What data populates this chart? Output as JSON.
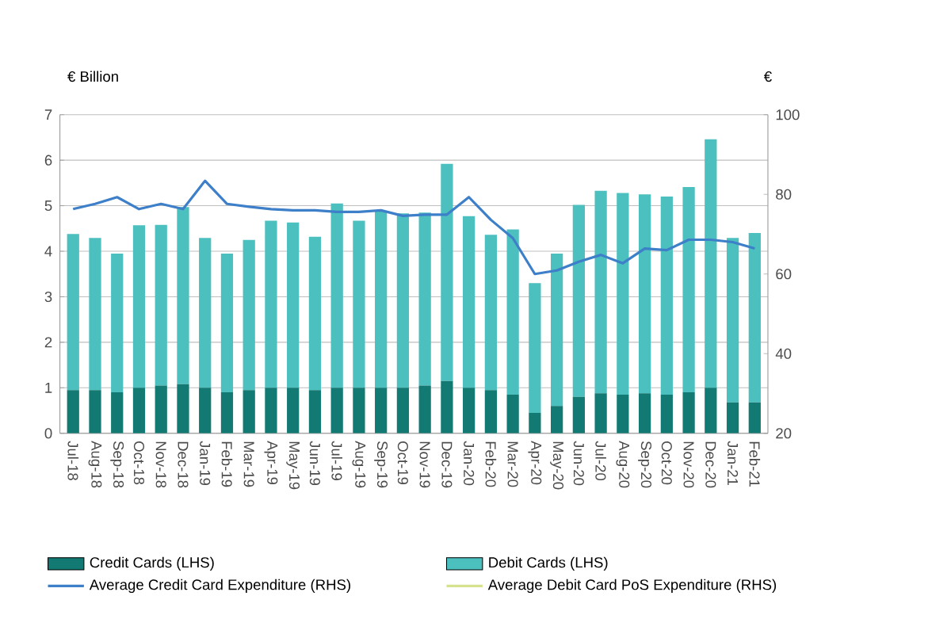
{
  "chart_data": {
    "type": "bar",
    "stacked": true,
    "ylabel": "€ Billion",
    "y2label": "€",
    "categories": [
      "Jul-18",
      "Aug-18",
      "Sep-18",
      "Oct-18",
      "Nov-18",
      "Dec-18",
      "Jan-19",
      "Feb-19",
      "Mar-19",
      "Apr-19",
      "May-19",
      "Jun-19",
      "Jul-19",
      "Aug-19",
      "Sep-19",
      "Oct-19",
      "Nov-19",
      "Dec-19",
      "Jan-20",
      "Feb-20",
      "Mar-20",
      "Apr-20",
      "May-20",
      "Jun-20",
      "Jul-20",
      "Aug-20",
      "Sep-20",
      "Oct-20",
      "Nov-20",
      "Dec-20",
      "Jan-21",
      "Feb-21"
    ],
    "series": [
      {
        "name": "Credit Cards (LHS)",
        "color": "#127a72",
        "values": [
          0.95,
          0.95,
          0.9,
          1.0,
          1.05,
          1.08,
          1.0,
          0.9,
          0.95,
          1.0,
          1.0,
          0.95,
          1.0,
          1.0,
          1.0,
          1.0,
          1.05,
          1.15,
          1.0,
          0.95,
          0.85,
          0.45,
          0.6,
          0.8,
          0.88,
          0.85,
          0.88,
          0.85,
          0.9,
          1.0,
          0.68,
          0.68
        ]
      },
      {
        "name": "Debit Cards (LHS)",
        "color": "#4cbfbf",
        "values": [
          3.43,
          3.34,
          3.05,
          3.57,
          3.53,
          3.89,
          3.29,
          3.05,
          3.3,
          3.67,
          3.63,
          3.37,
          4.05,
          3.67,
          3.87,
          3.83,
          3.8,
          4.77,
          3.77,
          3.41,
          3.63,
          2.85,
          3.35,
          4.22,
          4.45,
          4.43,
          4.37,
          4.35,
          4.51,
          5.46,
          3.61,
          3.72
        ]
      },
      {
        "name": "Average Credit Card Expenditure (RHS)",
        "type": "line",
        "axis": "y2",
        "color": "#3d7fc8",
        "values": [
          76.3,
          77.6,
          79.3,
          76.3,
          77.6,
          76.3,
          83.4,
          77.6,
          76.9,
          76.3,
          76.0,
          76.0,
          75.6,
          75.6,
          76.0,
          74.6,
          74.9,
          74.9,
          79.3,
          73.6,
          69.0,
          60.0,
          60.9,
          63.1,
          64.8,
          62.7,
          66.4,
          66.0,
          68.6,
          68.6,
          68.0,
          66.4
        ]
      },
      {
        "name": "Average Debit Card PoS Expenditure (RHS)",
        "type": "line",
        "axis": "y2",
        "color": "#d6e28e",
        "values": [
          null,
          null,
          null,
          null,
          null,
          null,
          null,
          null,
          null,
          null,
          null,
          null,
          null,
          null,
          null,
          null,
          null,
          null,
          null,
          null,
          null,
          null,
          null,
          null,
          null,
          null,
          null,
          null,
          null,
          null,
          null,
          null
        ]
      }
    ],
    "ylim": [
      0,
      7
    ],
    "yticks": [
      0,
      1,
      2,
      3,
      4,
      5,
      6,
      7
    ],
    "y2lim": [
      20,
      100
    ],
    "y2ticks": [
      20,
      40,
      60,
      80,
      100
    ],
    "grid": "y",
    "legend": "bottom"
  }
}
